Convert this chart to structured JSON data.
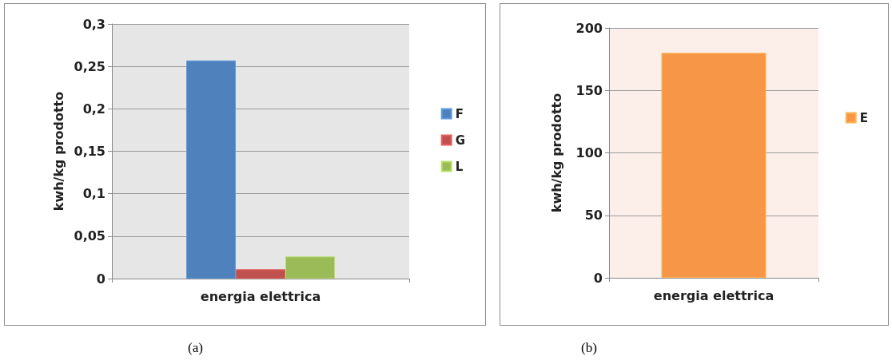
{
  "chart_data": [
    {
      "type": "bar",
      "categories": [
        "energia elettrica"
      ],
      "ylabel": "kwh/kg prodotto",
      "series": [
        {
          "name": "F",
          "color": "#4f81bd",
          "values": [
            0.257
          ]
        },
        {
          "name": "G",
          "color": "#c0504d",
          "values": [
            0.011
          ]
        },
        {
          "name": "L",
          "color": "#9bbb59",
          "values": [
            0.026
          ]
        }
      ],
      "ylim": [
        0,
        0.3
      ],
      "yticks": [
        0,
        {
          "value": 0.05,
          "label": "0,05"
        },
        {
          "value": 0.1,
          "label": "0,1"
        },
        {
          "value": 0.15,
          "label": "0,15"
        },
        {
          "value": 0.2,
          "label": "0,2"
        },
        {
          "value": 0.25,
          "label": "0,25"
        },
        {
          "value": 0.3,
          "label": "0,3"
        }
      ],
      "grid": "y",
      "legend": "right",
      "annotations": [
        "(a)"
      ]
    },
    {
      "type": "bar",
      "categories": [
        "energia elettrica"
      ],
      "ylabel": "kwh/kg prodotto",
      "series": [
        {
          "name": "E",
          "color": "#f79646",
          "values": [
            180
          ]
        }
      ],
      "ylim": [
        0,
        200
      ],
      "yticks": [
        0,
        50,
        100,
        150,
        200
      ],
      "grid": "y",
      "legend": "right",
      "annotations": [
        "(b)"
      ]
    }
  ]
}
